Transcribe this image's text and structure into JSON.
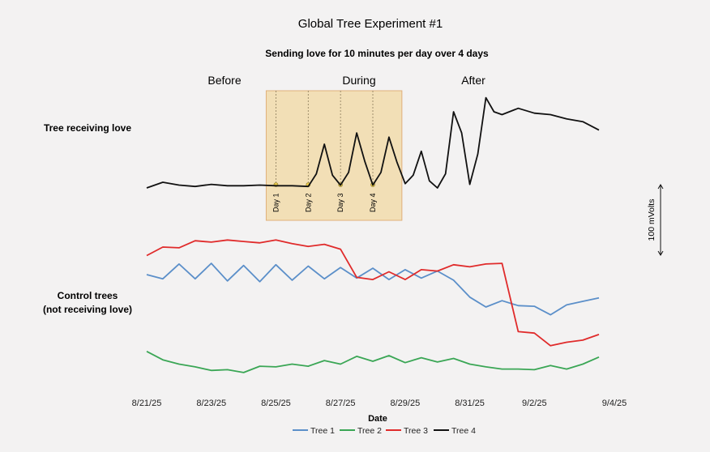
{
  "chart_data": {
    "type": "line",
    "title": "Global Tree Experiment  #1",
    "subtitle": "Sending love for 10 minutes per day over 4 days",
    "xlabel": "Date",
    "ylabel": "",
    "x_ticks": [
      "8/21/25",
      "8/23/25",
      "8/25/25",
      "8/27/25",
      "8/29/25",
      "8/31/25",
      "9/2/25",
      "9/4/25"
    ],
    "xlim": [
      "2025-08-21",
      "2025-09-04"
    ],
    "grid": false,
    "legend_position": "bottom",
    "phases": [
      "Before",
      "During",
      "After"
    ],
    "group_labels": {
      "treated": "Tree receiving love",
      "control_line1": "Control trees",
      "control_line2": "(not receiving love)"
    },
    "highlight": {
      "start": "2025-08-25",
      "end": "2025-08-29",
      "color": "#f2dfb6",
      "border": "#e0b07a",
      "day_markers": [
        {
          "label": "Day 1",
          "date": "2025-08-25"
        },
        {
          "label": "Day 2",
          "date": "2025-08-26"
        },
        {
          "label": "Day 3",
          "date": "2025-08-27"
        },
        {
          "label": "Day 4",
          "date": "2025-08-28"
        }
      ]
    },
    "scale_bar": {
      "label": "100 mVolts",
      "value_mV": 100
    },
    "y_unit": "mV",
    "series": [
      {
        "name": "Tree 1",
        "color": "#5b8fc9",
        "x": [
          "2025-08-21",
          "2025-08-21T12:00",
          "2025-08-22",
          "2025-08-22T12:00",
          "2025-08-23",
          "2025-08-23T12:00",
          "2025-08-24",
          "2025-08-24T12:00",
          "2025-08-25",
          "2025-08-25T12:00",
          "2025-08-26",
          "2025-08-26T12:00",
          "2025-08-27",
          "2025-08-27T12:00",
          "2025-08-28",
          "2025-08-28T12:00",
          "2025-08-29",
          "2025-08-29T12:00",
          "2025-08-30",
          "2025-08-30T12:00",
          "2025-08-31",
          "2025-08-31T12:00",
          "2025-09-01",
          "2025-09-01T12:00",
          "2025-09-02",
          "2025-09-02T12:00",
          "2025-09-03",
          "2025-09-03T12:00",
          "2025-09-04"
        ],
        "y": [
          -131,
          -137,
          -116,
          -137,
          -115,
          -140,
          -118,
          -141,
          -117,
          -139,
          -119,
          -137,
          -121,
          -136,
          -122,
          -138,
          -124,
          -136,
          -126,
          -139,
          -163,
          -177,
          -168,
          -175,
          -176,
          -188,
          -174,
          -169,
          -164
        ]
      },
      {
        "name": "Tree 2",
        "color": "#3aa655",
        "x": [
          "2025-08-21",
          "2025-08-21T12:00",
          "2025-08-22",
          "2025-08-22T12:00",
          "2025-08-23",
          "2025-08-23T12:00",
          "2025-08-24",
          "2025-08-24T12:00",
          "2025-08-25",
          "2025-08-25T12:00",
          "2025-08-26",
          "2025-08-26T12:00",
          "2025-08-27",
          "2025-08-27T12:00",
          "2025-08-28",
          "2025-08-28T12:00",
          "2025-08-29",
          "2025-08-29T12:00",
          "2025-08-30",
          "2025-08-30T12:00",
          "2025-08-31",
          "2025-08-31T12:00",
          "2025-09-01",
          "2025-09-01T12:00",
          "2025-09-02",
          "2025-09-02T12:00",
          "2025-09-03",
          "2025-09-03T12:00",
          "2025-09-04"
        ],
        "y": [
          -240,
          -252,
          -258,
          -262,
          -267,
          -266,
          -270,
          -261,
          -262,
          -258,
          -261,
          -253,
          -258,
          -247,
          -254,
          -246,
          -256,
          -249,
          -255,
          -250,
          -258,
          -262,
          -265,
          -265,
          -266,
          -260,
          -265,
          -258,
          -248
        ]
      },
      {
        "name": "Tree 3",
        "color": "#e02b2b",
        "x": [
          "2025-08-21",
          "2025-08-21T12:00",
          "2025-08-22",
          "2025-08-22T12:00",
          "2025-08-23",
          "2025-08-23T12:00",
          "2025-08-24",
          "2025-08-24T12:00",
          "2025-08-25",
          "2025-08-25T12:00",
          "2025-08-26",
          "2025-08-26T12:00",
          "2025-08-27",
          "2025-08-27T12:00",
          "2025-08-28",
          "2025-08-28T12:00",
          "2025-08-29",
          "2025-08-29T12:00",
          "2025-08-30",
          "2025-08-30T12:00",
          "2025-08-31",
          "2025-08-31T12:00",
          "2025-09-01",
          "2025-09-01T12:00",
          "2025-09-02",
          "2025-09-02T12:00",
          "2025-09-03",
          "2025-09-03T12:00",
          "2025-09-04"
        ],
        "y": [
          -104,
          -92,
          -93,
          -83,
          -85,
          -82,
          -84,
          -86,
          -82,
          -87,
          -91,
          -88,
          -95,
          -135,
          -138,
          -127,
          -138,
          -124,
          -126,
          -117,
          -120,
          -116,
          -115,
          -212,
          -214,
          -232,
          -227,
          -224,
          -216
        ]
      },
      {
        "name": "Tree 4",
        "color": "#111111",
        "x": [
          "2025-08-21",
          "2025-08-21T12:00",
          "2025-08-22",
          "2025-08-22T12:00",
          "2025-08-23",
          "2025-08-23T12:00",
          "2025-08-24",
          "2025-08-24T12:00",
          "2025-08-25",
          "2025-08-25T12:00",
          "2025-08-26",
          "2025-08-26T06:00",
          "2025-08-26T12:00",
          "2025-08-26T18:00",
          "2025-08-27",
          "2025-08-27T06:00",
          "2025-08-27T12:00",
          "2025-08-27T18:00",
          "2025-08-28",
          "2025-08-28T06:00",
          "2025-08-28T12:00",
          "2025-08-28T18:00",
          "2025-08-29",
          "2025-08-29T06:00",
          "2025-08-29T12:00",
          "2025-08-29T18:00",
          "2025-08-30",
          "2025-08-30T06:00",
          "2025-08-30T12:00",
          "2025-08-30T18:00",
          "2025-08-31",
          "2025-08-31T06:00",
          "2025-08-31T12:00",
          "2025-08-31T18:00",
          "2025-09-01",
          "2025-09-01T12:00",
          "2025-09-02",
          "2025-09-02T12:00",
          "2025-09-03",
          "2025-09-03T12:00",
          "2025-09-04"
        ],
        "y": [
          -8,
          0,
          -4,
          -6,
          -3,
          -5,
          -5,
          -4,
          -5,
          -5,
          -6,
          12,
          54,
          10,
          -4,
          14,
          70,
          30,
          -4,
          14,
          64,
          28,
          -2,
          10,
          44,
          2,
          -8,
          12,
          100,
          70,
          -3,
          40,
          120,
          100,
          96,
          105,
          98,
          96,
          90,
          86,
          74
        ]
      }
    ]
  }
}
